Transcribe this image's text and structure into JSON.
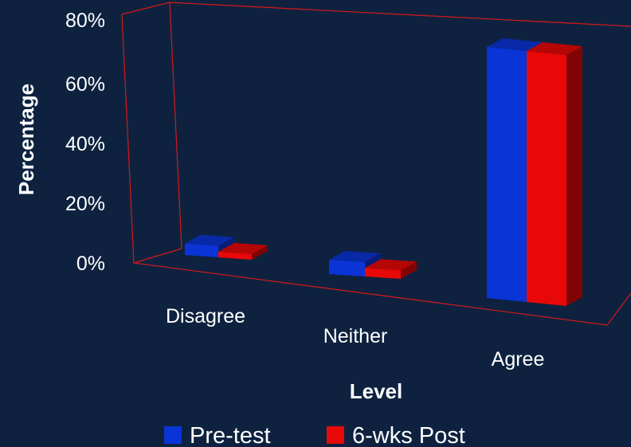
{
  "chart_data": {
    "type": "bar",
    "style": "3d-clustered-column",
    "categories": [
      "Disagree",
      "Neither",
      "Agree"
    ],
    "series": [
      {
        "name": "Pre-test",
        "values": [
          4,
          5,
          88
        ]
      },
      {
        "name": "6-wks Post",
        "values": [
          2,
          3,
          88
        ]
      }
    ],
    "xlabel": "Level",
    "ylabel": "Percentage",
    "ylim": [
      0,
      80
    ],
    "yticks": [
      "0%",
      "20%",
      "40%",
      "60%",
      "80%"
    ],
    "grid": false,
    "legend_position": "bottom"
  },
  "colors": {
    "background": "#0e2240",
    "frame": "#d81818",
    "series": [
      "#0a34d6",
      "#e80808"
    ]
  }
}
